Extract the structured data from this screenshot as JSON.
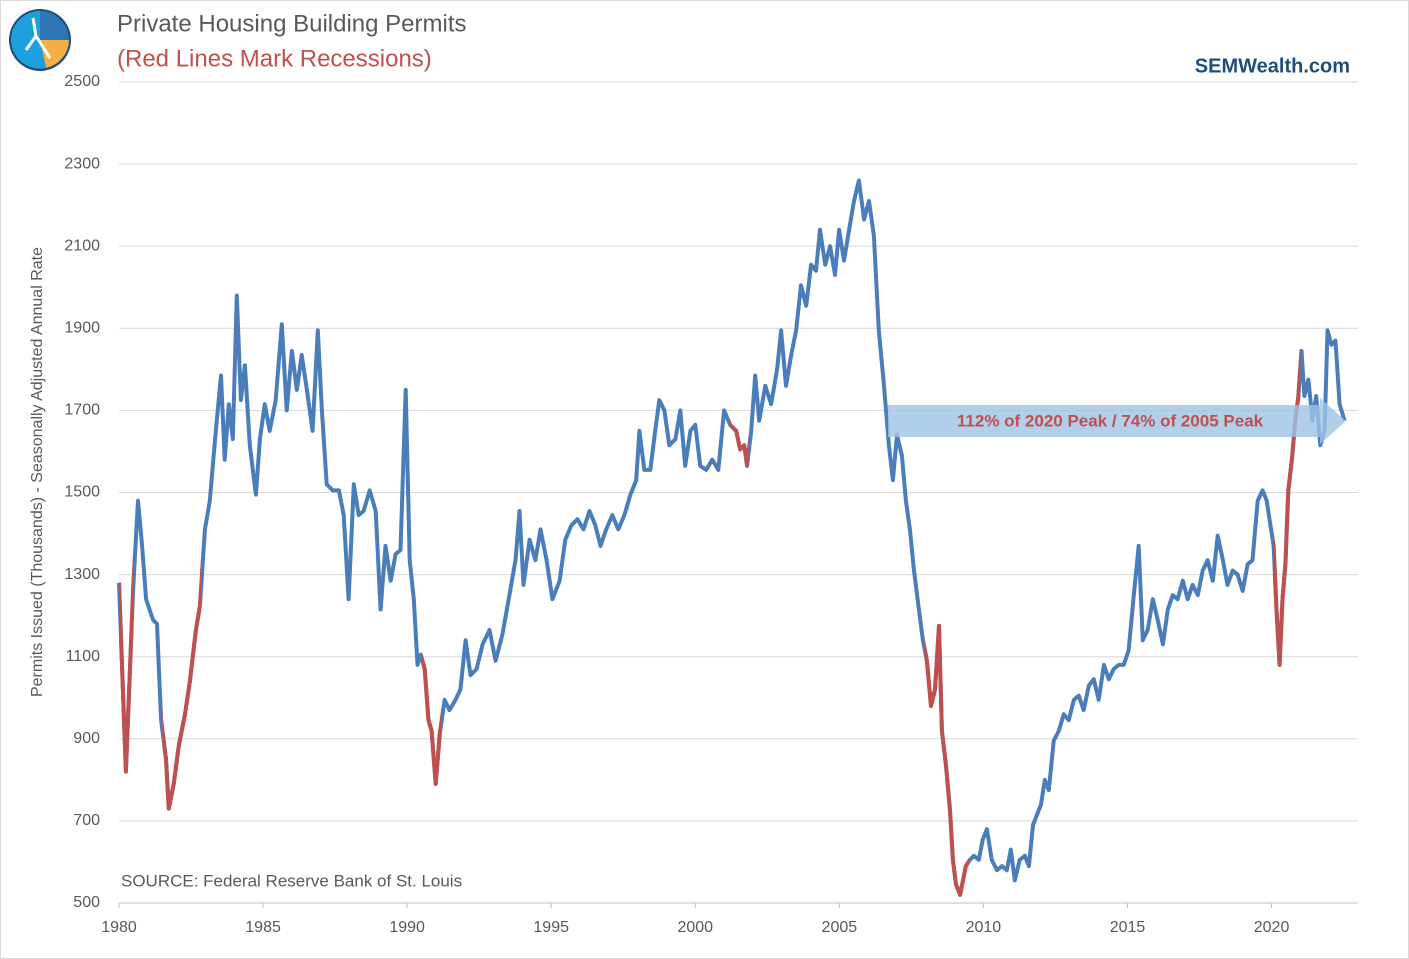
{
  "chart_data": {
    "type": "line",
    "title": "Private Housing Building Permits",
    "subtitle": "(Red Lines Mark Recessions)",
    "brand": "SEMWealth.com",
    "y_label": "Permits Issued (Thousands) - Seasonally Adjusted Annual Rate",
    "source": "SOURCE:  Federal Reserve Bank of St. Louis",
    "annotation": "112% of 2020 Peak / 74% of 2005 Peak",
    "xlim": [
      1980,
      2023
    ],
    "xticks": [
      1980,
      1985,
      1990,
      1995,
      2000,
      2005,
      2010,
      2015,
      2020
    ],
    "ylim": [
      500,
      2500
    ],
    "yticks": [
      500,
      700,
      900,
      1100,
      1300,
      1500,
      1700,
      1900,
      2100,
      2300,
      2500
    ],
    "grid": true,
    "recession_color": "#c0504d",
    "recessions": [
      [
        1980.0,
        1980.5
      ],
      [
        1981.5,
        1982.85
      ],
      [
        1990.5,
        1991.2
      ],
      [
        2001.2,
        2001.85
      ],
      [
        2007.95,
        2009.5
      ],
      [
        2020.05,
        2021.0
      ]
    ],
    "x": [
      1980.0,
      1980.24,
      1980.49,
      1980.66,
      1980.8,
      1980.94,
      1981.18,
      1981.32,
      1981.46,
      1981.63,
      1981.73,
      1981.9,
      1982.08,
      1982.29,
      1982.46,
      1982.67,
      1982.81,
      1982.98,
      1983.15,
      1983.36,
      1983.54,
      1983.67,
      1983.81,
      1983.95,
      1984.09,
      1984.23,
      1984.37,
      1984.54,
      1984.75,
      1984.89,
      1985.06,
      1985.23,
      1985.44,
      1985.65,
      1985.82,
      1986.0,
      1986.17,
      1986.34,
      1986.52,
      1986.72,
      1986.9,
      1987.04,
      1987.21,
      1987.42,
      1987.63,
      1987.8,
      1987.97,
      1988.15,
      1988.32,
      1988.49,
      1988.7,
      1988.91,
      1989.08,
      1989.25,
      1989.43,
      1989.6,
      1989.77,
      1989.95,
      1990.09,
      1990.23,
      1990.36,
      1990.47,
      1990.61,
      1990.74,
      1990.85,
      1990.99,
      1991.13,
      1991.3,
      1991.47,
      1991.68,
      1991.85,
      1992.03,
      1992.2,
      1992.41,
      1992.62,
      1992.86,
      1993.07,
      1993.31,
      1993.55,
      1993.76,
      1993.9,
      1994.04,
      1994.25,
      1994.45,
      1994.63,
      1994.84,
      1995.04,
      1995.29,
      1995.49,
      1995.7,
      1995.91,
      1996.12,
      1996.33,
      1996.53,
      1996.71,
      1996.91,
      1997.12,
      1997.33,
      1997.54,
      1997.75,
      1997.95,
      1998.06,
      1998.23,
      1998.44,
      1998.61,
      1998.75,
      1998.93,
      1999.1,
      1999.31,
      1999.48,
      1999.65,
      1999.83,
      2000.0,
      2000.17,
      2000.38,
      2000.59,
      2000.8,
      2001.0,
      2001.21,
      2001.42,
      2001.56,
      2001.7,
      2001.8,
      2001.94,
      2002.08,
      2002.22,
      2002.43,
      2002.63,
      2002.84,
      2002.98,
      2003.15,
      2003.33,
      2003.5,
      2003.67,
      2003.85,
      2004.02,
      2004.19,
      2004.33,
      2004.51,
      2004.68,
      2004.85,
      2004.99,
      2005.16,
      2005.34,
      2005.51,
      2005.68,
      2005.86,
      2006.03,
      2006.2,
      2006.37,
      2006.55,
      2006.72,
      2006.86,
      2007.0,
      2007.17,
      2007.31,
      2007.45,
      2007.59,
      2007.76,
      2007.9,
      2008.04,
      2008.18,
      2008.32,
      2008.46,
      2008.56,
      2008.7,
      2008.84,
      2008.94,
      2009.05,
      2009.19,
      2009.29,
      2009.39,
      2009.53,
      2009.67,
      2009.84,
      2009.98,
      2010.12,
      2010.29,
      2010.47,
      2010.64,
      2010.81,
      2010.95,
      2011.09,
      2011.26,
      2011.44,
      2011.58,
      2011.72,
      2011.86,
      2012.0,
      2012.13,
      2012.27,
      2012.44,
      2012.62,
      2012.79,
      2012.96,
      2013.14,
      2013.31,
      2013.48,
      2013.66,
      2013.83,
      2014.0,
      2014.18,
      2014.35,
      2014.52,
      2014.7,
      2014.87,
      2015.04,
      2015.22,
      2015.39,
      2015.53,
      2015.7,
      2015.88,
      2016.05,
      2016.23,
      2016.4,
      2016.57,
      2016.74,
      2016.92,
      2017.09,
      2017.26,
      2017.44,
      2017.61,
      2017.78,
      2017.96,
      2018.13,
      2018.31,
      2018.47,
      2018.65,
      2018.82,
      2019.0,
      2019.17,
      2019.34,
      2019.52,
      2019.69,
      2019.83,
      2019.96,
      2020.07,
      2020.17,
      2020.28,
      2020.38,
      2020.48,
      2020.58,
      2020.72,
      2020.82,
      2020.93,
      2021.04,
      2021.14,
      2021.28,
      2021.42,
      2021.55,
      2021.69,
      2021.84,
      2021.94,
      2022.08,
      2022.22,
      2022.36,
      2022.53
    ],
    "series": [
      {
        "color": "#4a7ebb",
        "values": [
          1280,
          820,
          1262,
          1480,
          1370,
          1240,
          1190,
          1180,
          945,
          850,
          730,
          790,
          885,
          960,
          1040,
          1165,
          1225,
          1410,
          1480,
          1650,
          1785,
          1580,
          1715,
          1630,
          1980,
          1725,
          1810,
          1615,
          1495,
          1630,
          1715,
          1650,
          1725,
          1910,
          1700,
          1845,
          1750,
          1835,
          1750,
          1650,
          1895,
          1700,
          1520,
          1505,
          1505,
          1445,
          1240,
          1520,
          1445,
          1455,
          1505,
          1455,
          1215,
          1370,
          1285,
          1350,
          1360,
          1750,
          1335,
          1240,
          1080,
          1105,
          1070,
          945,
          920,
          790,
          910,
          995,
          970,
          995,
          1020,
          1140,
          1055,
          1070,
          1130,
          1165,
          1090,
          1155,
          1250,
          1335,
          1455,
          1275,
          1385,
          1335,
          1410,
          1335,
          1240,
          1285,
          1385,
          1420,
          1435,
          1410,
          1455,
          1420,
          1370,
          1410,
          1445,
          1410,
          1445,
          1495,
          1530,
          1650,
          1555,
          1555,
          1650,
          1725,
          1700,
          1615,
          1630,
          1700,
          1565,
          1650,
          1665,
          1565,
          1555,
          1580,
          1555,
          1700,
          1665,
          1650,
          1605,
          1615,
          1565,
          1650,
          1785,
          1675,
          1760,
          1715,
          1800,
          1895,
          1760,
          1835,
          1895,
          2005,
          1955,
          2055,
          2040,
          2140,
          2055,
          2100,
          2030,
          2140,
          2065,
          2140,
          2210,
          2260,
          2165,
          2210,
          2125,
          1895,
          1760,
          1615,
          1530,
          1640,
          1590,
          1480,
          1410,
          1310,
          1215,
          1140,
          1090,
          980,
          1020,
          1175,
          920,
          835,
          725,
          605,
          545,
          520,
          555,
          590,
          605,
          615,
          605,
          655,
          680,
          605,
          580,
          590,
          580,
          630,
          555,
          605,
          615,
          590,
          690,
          715,
          740,
          800,
          775,
          895,
          920,
          960,
          945,
          995,
          1005,
          970,
          1030,
          1045,
          995,
          1080,
          1045,
          1070,
          1080,
          1080,
          1115,
          1250,
          1370,
          1140,
          1165,
          1240,
          1190,
          1130,
          1215,
          1250,
          1240,
          1285,
          1240,
          1275,
          1250,
          1310,
          1335,
          1285,
          1395,
          1335,
          1275,
          1310,
          1300,
          1260,
          1325,
          1335,
          1480,
          1505,
          1480,
          1420,
          1370,
          1215,
          1080,
          1240,
          1325,
          1505,
          1590,
          1675,
          1735,
          1845,
          1735,
          1775,
          1675,
          1735,
          1615,
          1650,
          1895,
          1860,
          1870,
          1715,
          1675
        ]
      }
    ]
  }
}
